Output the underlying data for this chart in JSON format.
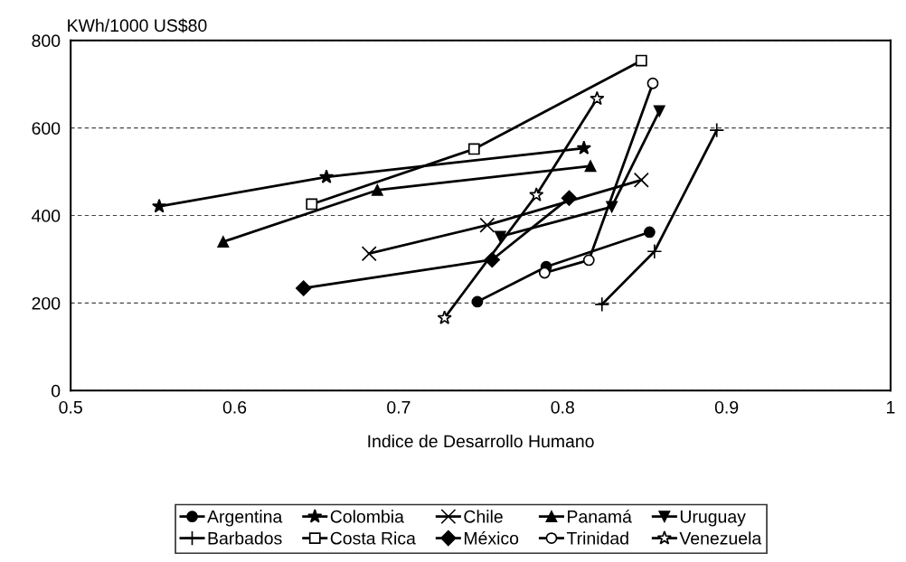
{
  "chart_data": {
    "type": "line",
    "ylabel": "KWh/1000 US$80",
    "xlabel": "Indice de Desarrollo Humano",
    "xlim": [
      0.5,
      1
    ],
    "xticks": [
      0.5,
      0.6,
      0.7,
      0.8,
      0.9,
      1
    ],
    "ylim": [
      0,
      800
    ],
    "yticks": [
      0,
      200,
      400,
      600,
      800
    ],
    "grid": "y",
    "legend": "bottom",
    "series": [
      {
        "name": "Argentina",
        "color": "#000000",
        "marker": "circle",
        "x": [
          0.748,
          0.79,
          0.853
        ],
        "values": [
          203,
          283,
          362
        ]
      },
      {
        "name": "Barbados",
        "color": "#000000",
        "marker": "plus",
        "x": [
          0.824,
          0.856,
          0.894
        ],
        "values": [
          197,
          318,
          595
        ]
      },
      {
        "name": "Colombia",
        "color": "#000000",
        "marker": "asterisk",
        "x": [
          0.554,
          0.656,
          0.813
        ],
        "values": [
          421,
          488,
          554
        ]
      },
      {
        "name": "Costa Rica",
        "color": "#000000",
        "marker": "square_open",
        "x": [
          0.647,
          0.746,
          0.848
        ],
        "values": [
          426,
          552,
          754
        ]
      },
      {
        "name": "Chile",
        "color": "#000000",
        "marker": "cross",
        "x": [
          0.682,
          0.754,
          0.848
        ],
        "values": [
          313,
          378,
          481
        ]
      },
      {
        "name": "México",
        "color": "#000000",
        "marker": "diamond",
        "x": [
          0.642,
          0.757,
          0.804
        ],
        "values": [
          234,
          299,
          440
        ]
      },
      {
        "name": "Panamá",
        "color": "#000000",
        "marker": "triangle",
        "x": [
          0.593,
          0.687,
          0.817
        ],
        "values": [
          340,
          458,
          513
        ]
      },
      {
        "name": "Trinidad",
        "color": "#000000",
        "marker": "circle_open",
        "x": [
          0.789,
          0.816,
          0.855
        ],
        "values": [
          269,
          298,
          702
        ]
      },
      {
        "name": "Uruguay",
        "color": "#000000",
        "marker": "triangle_down",
        "x": [
          0.762,
          0.83,
          0.859
        ],
        "values": [
          352,
          420,
          639
        ]
      },
      {
        "name": "Venezuela",
        "color": "#000000",
        "marker": "star_open",
        "x": [
          0.728,
          0.784,
          0.821
        ],
        "values": [
          166,
          447,
          667
        ]
      }
    ]
  }
}
